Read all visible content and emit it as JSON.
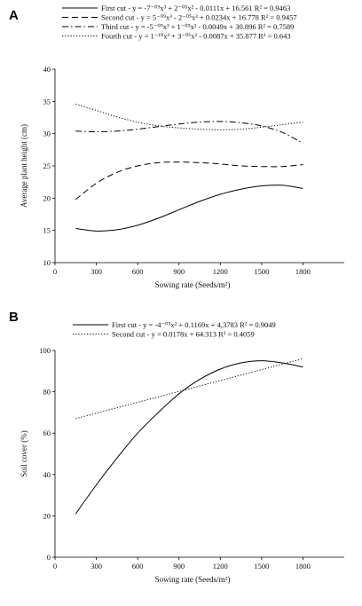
{
  "chart_data": [
    {
      "type": "line",
      "panel": "A",
      "xlabel": "Sowing rate (Seeds/m²)",
      "ylabel": "Average plant height (cm)",
      "xlim": [
        0,
        2100
      ],
      "ylim": [
        10,
        40
      ],
      "xticks": [
        0,
        300,
        600,
        900,
        1200,
        1500,
        1800
      ],
      "yticks": [
        10,
        15,
        20,
        25,
        30,
        35,
        40
      ],
      "legend_position": "top",
      "series": [
        {
          "name": "First cut - y = -7⁻⁰⁹x³ + 2⁻⁰⁵x² - 0.0111x + 16.561  R² = 0.9463",
          "style": "solid",
          "x": [
            150,
            300,
            450,
            600,
            750,
            900,
            1050,
            1200,
            1350,
            1500,
            1650,
            1800
          ],
          "y": [
            15.3,
            14.9,
            15.1,
            15.8,
            16.9,
            18.2,
            19.5,
            20.6,
            21.4,
            21.9,
            22.0,
            21.5
          ]
        },
        {
          "name": "Second cut - y = 5⁻⁰⁹x³ - 2⁻⁰⁵x² + 0.0234x + 16.778  R² = 0.9457",
          "style": "dashed",
          "x": [
            150,
            300,
            450,
            600,
            750,
            900,
            1050,
            1200,
            1350,
            1500,
            1650,
            1800
          ],
          "y": [
            19.8,
            22.3,
            24.0,
            25.0,
            25.5,
            25.6,
            25.5,
            25.3,
            25.0,
            24.9,
            24.9,
            25.2
          ]
        },
        {
          "name": "Third cut - y = -5⁻⁰⁹x³ + 1⁻⁰⁵x² - 0.0049x + 30.896  R² = 0.7589",
          "style": "dashdot",
          "x": [
            150,
            300,
            450,
            600,
            750,
            900,
            1050,
            1200,
            1350,
            1500,
            1650,
            1800
          ],
          "y": [
            30.4,
            30.3,
            30.4,
            30.7,
            31.1,
            31.5,
            31.8,
            31.9,
            31.7,
            31.2,
            30.2,
            28.5
          ]
        },
        {
          "name": "Fourth cut - y = 1⁻¹⁰x³ + 3⁻⁰⁶x² - 0.0087x + 35.877  R² = 0.643",
          "style": "dotted",
          "x": [
            150,
            300,
            450,
            600,
            750,
            900,
            1050,
            1200,
            1350,
            1500,
            1650,
            1800
          ],
          "y": [
            34.6,
            33.6,
            32.6,
            31.8,
            31.2,
            30.9,
            30.7,
            30.6,
            30.7,
            31.0,
            31.4,
            31.8
          ]
        }
      ]
    },
    {
      "type": "line",
      "panel": "B",
      "xlabel": "Sowing rate (Seeds/m²)",
      "ylabel": "Soil cover (%)",
      "xlim": [
        0,
        2100
      ],
      "ylim": [
        0,
        100
      ],
      "xticks": [
        0,
        300,
        600,
        900,
        1200,
        1500,
        1800
      ],
      "yticks": [
        0,
        20,
        40,
        60,
        80,
        100
      ],
      "legend_position": "top",
      "series": [
        {
          "name": "First cut - y = -4⁻⁰⁵x² + 0.1169x + 4,3783  R² = 0.9049",
          "style": "solid",
          "x": [
            150,
            300,
            450,
            600,
            750,
            900,
            1050,
            1200,
            1350,
            1500,
            1650,
            1800
          ],
          "y": [
            21,
            35,
            48,
            60,
            70,
            79,
            86,
            91,
            94,
            95,
            94,
            92
          ]
        },
        {
          "name": "Second cut - y = 0.0178x + 64.313  R² = 0.4059",
          "style": "dotted",
          "x": [
            150,
            1800
          ],
          "y": [
            67,
            96
          ]
        }
      ]
    }
  ],
  "panels": [
    "A",
    "B"
  ]
}
